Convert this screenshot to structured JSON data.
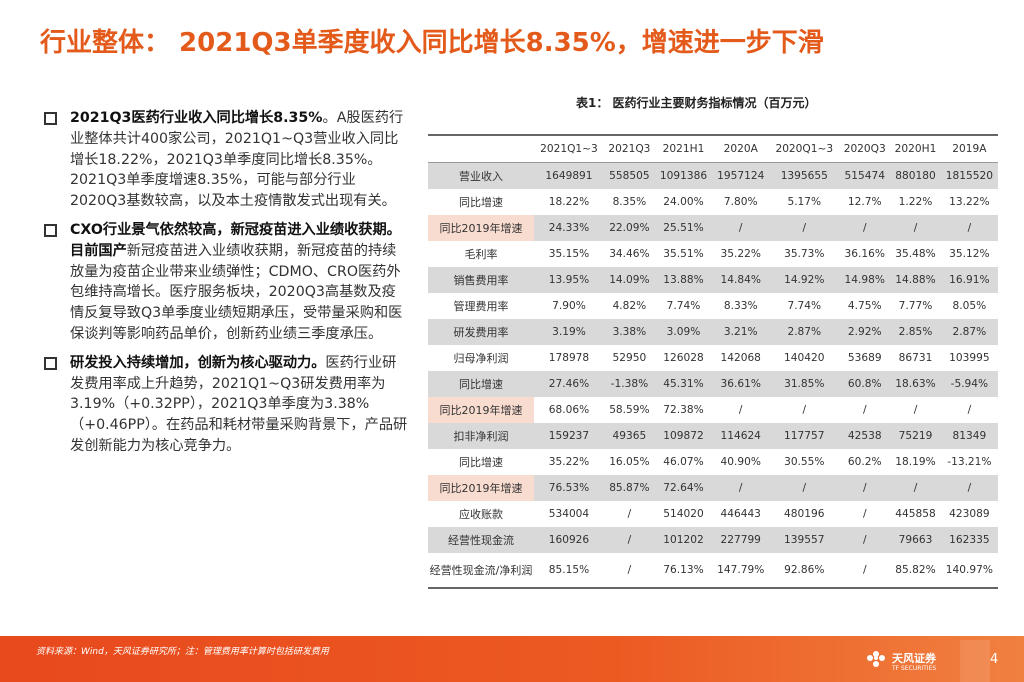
{
  "title": "行业整体： 2021Q3单季度收入同比增长8.35%，增速进一步下滑",
  "bullets": [
    {
      "bold": "2021Q3医药行业收入同比增长8.35%",
      "text": "。A股医药行业整体共计400家公司，2021Q1~Q3营业收入同比增长18.22%，2021Q3单季度同比增长8.35%。2021Q3单季度增速8.35%，可能与部分行业2020Q3基数较高，以及本土疫情散发式出现有关。"
    },
    {
      "bold": "CXO行业景气依然较高，新冠疫苗进入业绩收获期。目前国产",
      "text": "新冠疫苗进入业绩收获期，新冠疫苗的持续放量为疫苗企业带来业绩弹性；CDMO、CRO医药外包维持高增长。医疗服务板块，2020Q3高基数及疫情反复导致Q3单季度业绩短期承压，受带量采购和医保谈判等影响药品单价，创新药业绩三季度承压。"
    },
    {
      "bold": "研发投入持续增加，创新为核心驱动力。",
      "text": "医药行业研发费用率成上升趋势，2021Q1~Q3研发费用率为3.19%（+0.32PP），2021Q3单季度为3.38%（+0.46PP）。在药品和耗材带量采购背景下，产品研发创新能力为核心竞争力。"
    }
  ],
  "table": {
    "title": "表1：  医药行业主要财务指标情况（百万元）",
    "headers": [
      "",
      "2021Q1~3",
      "2021Q3",
      "2021H1",
      "2020A",
      "2020Q1~3",
      "2020Q3",
      "2020H1",
      "2019A"
    ],
    "rows": [
      {
        "label": "营业收入",
        "values": [
          "1649891",
          "558505",
          "1091386",
          "1957124",
          "1395655",
          "515474",
          "880180",
          "1815520"
        ],
        "shade": true,
        "hl": false
      },
      {
        "label": "同比增速",
        "values": [
          "18.22%",
          "8.35%",
          "24.00%",
          "7.80%",
          "5.17%",
          "12.7%",
          "1.22%",
          "13.22%"
        ],
        "shade": false,
        "hl": false
      },
      {
        "label": "同比2019年增速",
        "values": [
          "24.33%",
          "22.09%",
          "25.51%",
          "/",
          "/",
          "/",
          "/",
          "/"
        ],
        "shade": true,
        "hl": true
      },
      {
        "label": "毛利率",
        "values": [
          "35.15%",
          "34.46%",
          "35.51%",
          "35.22%",
          "35.73%",
          "36.16%",
          "35.48%",
          "35.12%"
        ],
        "shade": false,
        "hl": false
      },
      {
        "label": "销售费用率",
        "values": [
          "13.95%",
          "14.09%",
          "13.88%",
          "14.84%",
          "14.92%",
          "14.98%",
          "14.88%",
          "16.91%"
        ],
        "shade": true,
        "hl": false
      },
      {
        "label": "管理费用率",
        "values": [
          "7.90%",
          "4.82%",
          "7.74%",
          "8.33%",
          "7.74%",
          "4.75%",
          "7.77%",
          "8.05%"
        ],
        "shade": false,
        "hl": false
      },
      {
        "label": "研发费用率",
        "values": [
          "3.19%",
          "3.38%",
          "3.09%",
          "3.21%",
          "2.87%",
          "2.92%",
          "2.85%",
          "2.87%"
        ],
        "shade": true,
        "hl": false
      },
      {
        "label": "归母净利润",
        "values": [
          "178978",
          "52950",
          "126028",
          "142068",
          "140420",
          "53689",
          "86731",
          "103995"
        ],
        "shade": false,
        "hl": false
      },
      {
        "label": "同比增速",
        "values": [
          "27.46%",
          "-1.38%",
          "45.31%",
          "36.61%",
          "31.85%",
          "60.8%",
          "18.63%",
          "-5.94%"
        ],
        "shade": true,
        "hl": false
      },
      {
        "label": "同比2019年增速",
        "values": [
          "68.06%",
          "58.59%",
          "72.38%",
          "/",
          "/",
          "/",
          "/",
          "/"
        ],
        "shade": false,
        "hl": true
      },
      {
        "label": "扣非净利润",
        "values": [
          "159237",
          "49365",
          "109872",
          "114624",
          "117757",
          "42538",
          "75219",
          "81349"
        ],
        "shade": true,
        "hl": false
      },
      {
        "label": "同比增速",
        "values": [
          "35.22%",
          "16.05%",
          "46.07%",
          "40.90%",
          "30.55%",
          "60.2%",
          "18.19%",
          "-13.21%"
        ],
        "shade": false,
        "hl": false
      },
      {
        "label": "同比2019年增速",
        "values": [
          "76.53%",
          "85.87%",
          "72.64%",
          "/",
          "/",
          "/",
          "/",
          "/"
        ],
        "shade": true,
        "hl": true
      },
      {
        "label": "应收账款",
        "values": [
          "534004",
          "/",
          "514020",
          "446443",
          "480196",
          "/",
          "445858",
          "423089"
        ],
        "shade": false,
        "hl": false
      },
      {
        "label": "经营性现金流",
        "values": [
          "160926",
          "/",
          "101202",
          "227799",
          "139557",
          "/",
          "79663",
          "162335"
        ],
        "shade": true,
        "hl": false
      },
      {
        "label": "经营性现金流/净利润",
        "values": [
          "85.15%",
          "/",
          "76.13%",
          "147.79%",
          "92.86%",
          "/",
          "85.82%",
          "140.97%"
        ],
        "shade": false,
        "hl": false
      }
    ]
  },
  "footer": {
    "note": "资料来源：Wind，天风证券研究所；注：管理费用率计算时包括研发费用",
    "logo_text": "天风证券",
    "logo_sub": "TF SECURITIES",
    "page": "4"
  },
  "colors": {
    "accent": "#e35a1b",
    "footer": "#e8491d",
    "shade": "#d9d9d9",
    "highlight": "#f9dcd0"
  }
}
